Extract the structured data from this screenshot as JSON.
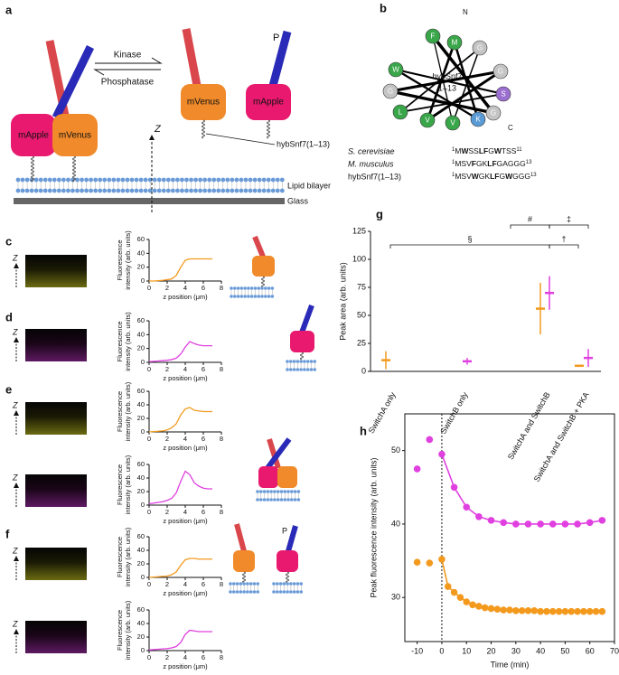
{
  "figure": {
    "a": {
      "label": "a",
      "kinase": "Kinase",
      "phosphatase": "Phosphatase",
      "mapple": "mApple",
      "mvenus": "mVenus",
      "p": "P",
      "z": "Z",
      "peptide": "hybSnf7(1–13)",
      "bilayer": "Lipid bilayer",
      "glass": "Glass"
    },
    "b": {
      "label": "b",
      "center": [
        "hybSnf7",
        "1–13"
      ],
      "n": "N",
      "c": "C",
      "residues": [
        {
          "aa": "F",
          "color": "#3aa64a"
        },
        {
          "aa": "M",
          "color": "#3aa64a"
        },
        {
          "aa": "G",
          "color": "#c4c4c4"
        },
        {
          "aa": "G",
          "color": "#c4c4c4"
        },
        {
          "aa": "S",
          "color": "#9b6fd0"
        },
        {
          "aa": "G",
          "color": "#c4c4c4"
        },
        {
          "aa": "K",
          "color": "#5b9bd5"
        },
        {
          "aa": "V",
          "color": "#3aa64a"
        },
        {
          "aa": "V",
          "color": "#3aa64a"
        },
        {
          "aa": "L",
          "color": "#3aa64a"
        },
        {
          "aa": "G",
          "color": "#c4c4c4"
        },
        {
          "aa": "W",
          "color": "#3aa64a"
        }
      ],
      "sequences": [
        {
          "name": "S. cerevisiae",
          "start": "1",
          "parts": [
            "M",
            "W",
            "SS",
            "LF",
            "G",
            "W",
            "TSS"
          ],
          "end": "11"
        },
        {
          "name": "M. musculus",
          "start": "1",
          "parts": [
            "MSV",
            "F",
            "GK",
            "LF",
            "GAGGG"
          ],
          "end": "13"
        },
        {
          "name": "hybSnf7(1–13)",
          "start": "1",
          "parts": [
            "MSV",
            "W",
            "GK",
            "LF",
            "G",
            "W",
            "GGG"
          ],
          "end": "13"
        }
      ]
    },
    "panel_labels": [
      "c",
      "d",
      "e",
      "f",
      "g",
      "h"
    ]
  },
  "chart_data": [
    {
      "type": "line",
      "x": [
        0,
        0.5,
        1,
        1.5,
        2,
        2.5,
        3,
        3.5,
        4,
        4.5,
        5,
        5.5,
        6,
        6.5,
        7
      ],
      "xlabel": "z position (μm)",
      "ylabel": [
        "Fluorescence",
        "intensity (arb. units)"
      ],
      "xlim": [
        0,
        8
      ],
      "xticks": [
        0,
        2,
        4,
        6,
        8
      ],
      "ylim": [
        0,
        60
      ],
      "yticks": [
        0,
        20,
        40,
        60
      ],
      "series": [
        {
          "color": "#f39a1e",
          "values": [
            0,
            0,
            0.5,
            1,
            2,
            3,
            8,
            20,
            30,
            32,
            32,
            32,
            32,
            32,
            32
          ]
        }
      ]
    },
    {
      "type": "line",
      "x": [
        0,
        0.5,
        1,
        1.5,
        2,
        2.5,
        3,
        3.5,
        4,
        4.5,
        5,
        5.5,
        6,
        6.5,
        7
      ],
      "xlabel": "z position (μm)",
      "ylabel": [
        "Fluorescence",
        "intensity (arb. units)"
      ],
      "xlim": [
        0,
        8
      ],
      "xticks": [
        0,
        2,
        4,
        6,
        8
      ],
      "ylim": [
        0,
        60
      ],
      "yticks": [
        0,
        20,
        40,
        60
      ],
      "series": [
        {
          "color": "#e040e0",
          "values": [
            1,
            1.5,
            2,
            2.5,
            3,
            4,
            6,
            12,
            22,
            30,
            27,
            25,
            24,
            24,
            24
          ]
        }
      ]
    },
    {
      "type": "line",
      "x": [
        0,
        0.5,
        1,
        1.5,
        2,
        2.5,
        3,
        3.5,
        4,
        4.5,
        5,
        5.5,
        6,
        6.5,
        7
      ],
      "xlabel": "z position (μm)",
      "ylabel": [
        "Fluorescence",
        "intensity (arb. units)"
      ],
      "xlim": [
        0,
        8
      ],
      "xticks": [
        0,
        2,
        4,
        6,
        8
      ],
      "ylim": [
        0,
        60
      ],
      "yticks": [
        0,
        20,
        40,
        60
      ],
      "series": [
        {
          "color": "#f39a1e",
          "values": [
            0,
            0.5,
            1,
            1.5,
            3,
            6,
            12,
            25,
            34,
            36,
            32,
            31,
            30,
            30,
            30
          ]
        }
      ]
    },
    {
      "type": "line",
      "x": [
        0,
        0.5,
        1,
        1.5,
        2,
        2.5,
        3,
        3.5,
        4,
        4.5,
        5,
        5.5,
        6,
        6.5,
        7
      ],
      "xlabel": "z position (μm)",
      "ylabel": [
        "Fluorescence",
        "intensity (arb. units)"
      ],
      "xlim": [
        0,
        8
      ],
      "xticks": [
        0,
        2,
        4,
        6,
        8
      ],
      "ylim": [
        0,
        60
      ],
      "yticks": [
        0,
        20,
        40,
        60
      ],
      "series": [
        {
          "color": "#e040e0",
          "values": [
            2,
            3,
            4,
            5,
            7,
            10,
            18,
            35,
            50,
            45,
            33,
            28,
            25,
            24,
            24
          ]
        }
      ]
    },
    {
      "type": "line",
      "x": [
        0,
        0.5,
        1,
        1.5,
        2,
        2.5,
        3,
        3.5,
        4,
        4.5,
        5,
        5.5,
        6,
        6.5,
        7
      ],
      "xlabel": "z position (μm)",
      "ylabel": [
        "Fluorescence",
        "intensity (arb. units)"
      ],
      "xlim": [
        0,
        8
      ],
      "xticks": [
        0,
        2,
        4,
        6,
        8
      ],
      "ylim": [
        0,
        60
      ],
      "yticks": [
        0,
        20,
        40,
        60
      ],
      "series": [
        {
          "color": "#f39a1e",
          "values": [
            0,
            0.5,
            1,
            1.5,
            2,
            4,
            8,
            18,
            26,
            28,
            28,
            27,
            27,
            27,
            27
          ]
        }
      ]
    },
    {
      "type": "line",
      "x": [
        0,
        0.5,
        1,
        1.5,
        2,
        2.5,
        3,
        3.5,
        4,
        4.5,
        5,
        5.5,
        6,
        6.5,
        7
      ],
      "xlabel": "z position (μm)",
      "ylabel": [
        "Fluorescence",
        "intensity (arb. units)"
      ],
      "xlim": [
        0,
        8
      ],
      "xticks": [
        0,
        2,
        4,
        6,
        8
      ],
      "ylim": [
        0,
        60
      ],
      "yticks": [
        0,
        20,
        40,
        60
      ],
      "series": [
        {
          "color": "#e040e0",
          "values": [
            1,
            1.5,
            2,
            2.5,
            3,
            4,
            6,
            12,
            24,
            30,
            29,
            28,
            28,
            28,
            28
          ]
        }
      ]
    },
    {
      "type": "dot",
      "categories": [
        "SwitchA only",
        "SwitchB only",
        "SwitchA and SwitchB",
        "SwitchA and SwitchB + PKA"
      ],
      "ylabel": "Peak area (arb. units)",
      "ylim": [
        0,
        125
      ],
      "yticks": [
        0,
        25,
        50,
        75,
        100,
        125
      ],
      "series": [
        {
          "color": "#f39a1e",
          "values": [
            10,
            null,
            56,
            5
          ],
          "errors": [
            8,
            null,
            23,
            1
          ]
        },
        {
          "color": "#e040e0",
          "values": [
            null,
            9,
            70,
            12
          ],
          "errors": [
            null,
            3,
            15,
            8
          ]
        }
      ],
      "annotations": [
        "§",
        "#",
        "‡",
        "†"
      ]
    },
    {
      "type": "line",
      "markers": true,
      "xlabel": "Time (min)",
      "ylabel": "Peak fluorescence intensity (arb. units)",
      "xlim": [
        -15,
        70
      ],
      "xticks": [
        -10,
        0,
        10,
        20,
        30,
        40,
        50,
        60,
        70
      ],
      "ylim": [
        24,
        55
      ],
      "yticks": [
        30,
        40,
        50
      ],
      "series": [
        {
          "color": "#e040e0",
          "x": [
            -10,
            -5,
            0,
            5,
            10,
            15,
            20,
            25,
            30,
            35,
            40,
            45,
            50,
            55,
            60,
            65
          ],
          "values": [
            47.5,
            51.5,
            49.5,
            45,
            42.3,
            41,
            40.5,
            40.2,
            40,
            40,
            40,
            40,
            40,
            40,
            40.2,
            40.5
          ]
        },
        {
          "color": "#f39a1e",
          "x": [
            -10,
            -5,
            0,
            2.5,
            5,
            7.5,
            10,
            12.5,
            15,
            17.5,
            20,
            22.5,
            25,
            27.5,
            30,
            32.5,
            35,
            37.5,
            40,
            42.5,
            45,
            47.5,
            50,
            52.5,
            55,
            57.5,
            60,
            62.5,
            65
          ],
          "values": [
            34.8,
            34.7,
            35.2,
            31.5,
            30.7,
            30,
            29.4,
            29,
            28.8,
            28.6,
            28.5,
            28.4,
            28.3,
            28.3,
            28.2,
            28.2,
            28.2,
            28.2,
            28.1,
            28.1,
            28.1,
            28.1,
            28.1,
            28.1,
            28.1,
            28.1,
            28.1,
            28.1,
            28.1
          ]
        }
      ]
    }
  ]
}
